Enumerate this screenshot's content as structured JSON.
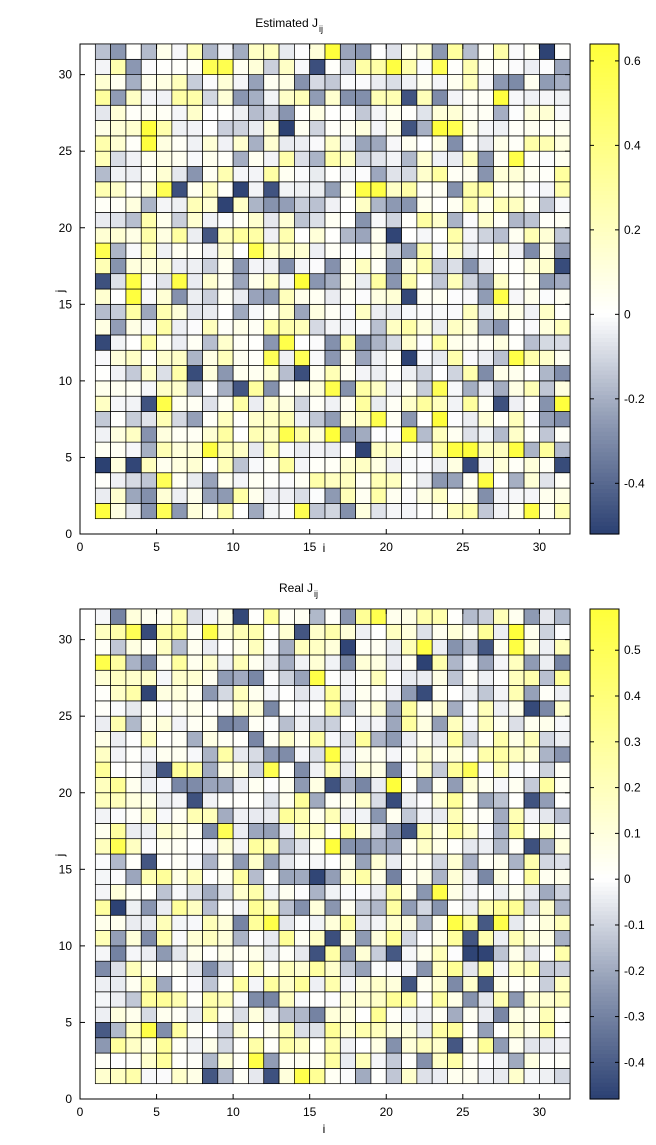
{
  "chart_data": [
    {
      "type": "heatmap",
      "title": "Estimated J",
      "title_subscript": "ij",
      "xlabel": "i",
      "ylabel": "j",
      "xlim": [
        0,
        32
      ],
      "ylim": [
        0,
        32
      ],
      "x_ticks": [
        "0",
        "5",
        "10",
        "15",
        "20",
        "25",
        "30"
      ],
      "y_ticks": [
        "0",
        "5",
        "10",
        "15",
        "20",
        "25",
        "30"
      ],
      "grid_size": 31,
      "colorbar": {
        "range": [
          -0.52,
          0.64
        ],
        "ticks": [
          "0.6",
          "0.4",
          "0.2",
          "0",
          "-0.2",
          "-0.4"
        ],
        "colormap": [
          "#2b4072",
          "#8c98b2",
          "#ffffff",
          "#ffff3a"
        ]
      },
      "values": "31x31 matrix of J_ij estimates in [-0.52, 0.64], rows j=1..31, columns i=1..31 (generated in script)"
    },
    {
      "type": "heatmap",
      "title": "Real J",
      "title_subscript": "ij",
      "xlabel": "i",
      "ylabel": "j",
      "xlim": [
        0,
        32
      ],
      "ylim": [
        0,
        32
      ],
      "x_ticks": [
        "0",
        "5",
        "10",
        "15",
        "20",
        "25",
        "30"
      ],
      "y_ticks": [
        "0",
        "5",
        "10",
        "15",
        "20",
        "25",
        "30"
      ],
      "grid_size": 31,
      "colorbar": {
        "range": [
          -0.48,
          0.59
        ],
        "ticks": [
          "0.5",
          "0.4",
          "0.3",
          "0.2",
          "0.1",
          "0",
          "-0.1",
          "-0.2",
          "-0.3",
          "-0.4"
        ],
        "colormap": [
          "#2b4072",
          "#8c98b2",
          "#ffffff",
          "#ffff3a"
        ]
      },
      "values": "31x31 matrix of true J_ij couplings in [-0.48, 0.59], rows j=1..31, columns i=1..31 (generated in script)"
    }
  ]
}
